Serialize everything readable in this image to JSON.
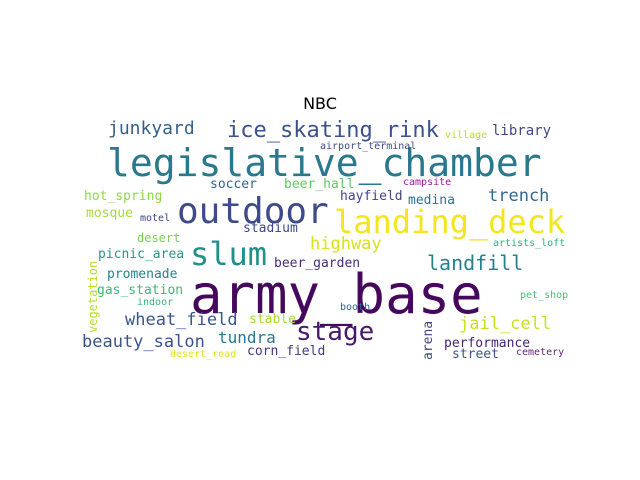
{
  "title": "NBC",
  "words": [
    {
      "text": "army_base",
      "color": "#46085c"
    },
    {
      "text": "legislative_chamber",
      "color": "#2a788e"
    },
    {
      "text": "outdoor",
      "color": "#3e4a89"
    },
    {
      "text": "landing_deck",
      "color": "#f3e61e"
    },
    {
      "text": "slum",
      "color": "#21908d"
    },
    {
      "text": "stage",
      "color": "#48186a"
    },
    {
      "text": "ice_skating_rink",
      "color": "#3b528b"
    },
    {
      "text": "landfill",
      "color": "#26818e"
    },
    {
      "text": "highway",
      "color": "#d8e219"
    },
    {
      "text": "jail_cell",
      "color": "#c8e020"
    },
    {
      "text": "junkyard",
      "color": "#355f8d"
    },
    {
      "text": "wheat_field",
      "color": "#39568c"
    },
    {
      "text": "beauty_salon",
      "color": "#3b528b"
    },
    {
      "text": "tundra",
      "color": "#2a788e"
    },
    {
      "text": "trench",
      "color": "#31688e"
    },
    {
      "text": "library",
      "color": "#3e4989"
    },
    {
      "text": "hot_spring",
      "color": "#8fd744"
    },
    {
      "text": "soccer",
      "color": "#33638d"
    },
    {
      "text": "beer_hall",
      "color": "#5ec962"
    },
    {
      "text": "hayfield",
      "color": "#414487"
    },
    {
      "text": "medina",
      "color": "#2c718e"
    },
    {
      "text": "mosque",
      "color": "#a5db36"
    },
    {
      "text": "stadium",
      "color": "#3e4a89"
    },
    {
      "text": "desert",
      "color": "#7ad151"
    },
    {
      "text": "picnic_area",
      "color": "#1f9a8a"
    },
    {
      "text": "beer_garden",
      "color": "#472d7b"
    },
    {
      "text": "promenade",
      "color": "#25858e"
    },
    {
      "text": "gas_station",
      "color": "#3aba76"
    },
    {
      "text": "stable",
      "color": "#a2da37"
    },
    {
      "text": "corn_field",
      "color": "#453781"
    },
    {
      "text": "performance",
      "color": "#482475"
    },
    {
      "text": "street",
      "color": "#3b528b"
    },
    {
      "text": "arena",
      "color": "#3f4788"
    },
    {
      "text": "vegetation",
      "color": "#b5de2b"
    },
    {
      "text": "airport_terminal",
      "color": "#3e4a89"
    },
    {
      "text": "village",
      "color": "#b8de29"
    },
    {
      "text": "campsite",
      "color": "#9c179e"
    },
    {
      "text": "motel",
      "color": "#404588"
    },
    {
      "text": "artists_loft",
      "color": "#2db27d"
    },
    {
      "text": "indoor",
      "color": "#31b57b"
    },
    {
      "text": "pet_shop",
      "color": "#4ac16d"
    },
    {
      "text": "booth",
      "color": "#33628d"
    },
    {
      "text": "desert_road",
      "color": "#dfe318"
    },
    {
      "text": "cemetery",
      "color": "#6a1d7a"
    }
  ]
}
